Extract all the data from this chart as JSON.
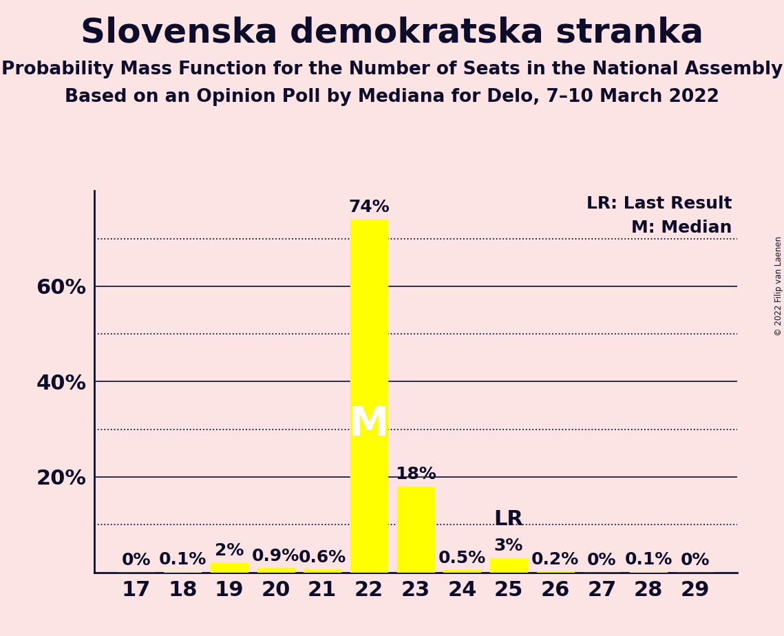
{
  "title": "Slovenska demokratska stranka",
  "subtitle1": "Probability Mass Function for the Number of Seats in the National Assembly",
  "subtitle2": "Based on an Opinion Poll by Mediana for Delo, 7–10 March 2022",
  "copyright": "© 2022 Filip van Laenen",
  "background_color": "#fce4e4",
  "bar_color": "#ffff00",
  "seats": [
    17,
    18,
    19,
    20,
    21,
    22,
    23,
    24,
    25,
    26,
    27,
    28,
    29
  ],
  "probabilities": [
    0.0,
    0.1,
    2.0,
    0.9,
    0.6,
    74.0,
    18.0,
    0.5,
    3.0,
    0.2,
    0.0,
    0.1,
    0.0
  ],
  "labels": [
    "0%",
    "0.1%",
    "2%",
    "0.9%",
    "0.6%",
    "74%",
    "18%",
    "0.5%",
    "3%",
    "0.2%",
    "0%",
    "0.1%",
    "0%"
  ],
  "median_seat": 22,
  "last_result_seat": 25,
  "ylim": [
    0,
    80
  ],
  "solid_grid": [
    20,
    40,
    60
  ],
  "dotted_grid": [
    10,
    30,
    50,
    70
  ],
  "title_fontsize": 36,
  "subtitle_fontsize": 19,
  "axis_label_fontsize": 22,
  "bar_label_fontsize": 18,
  "median_label": "M",
  "lr_label": "LR",
  "legend_text1": "LR: Last Result",
  "legend_text2": "M: Median",
  "text_color": "#0d0d2b"
}
